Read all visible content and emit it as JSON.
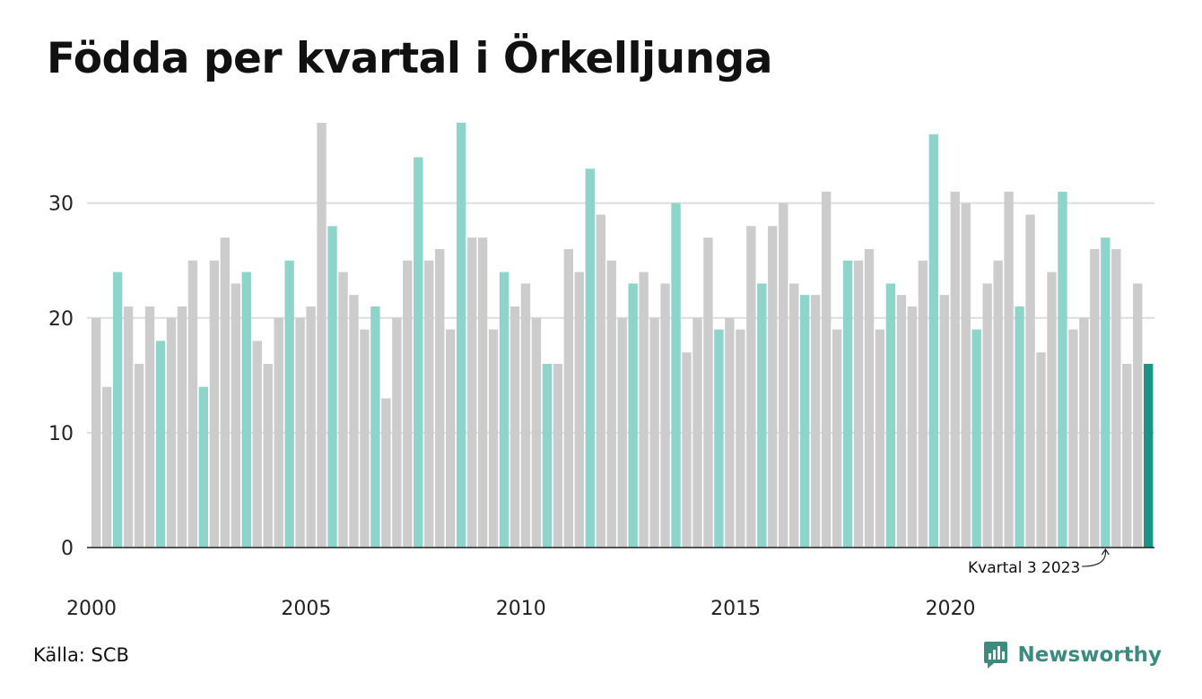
{
  "title": "Födda per kvartal i Örkelljunga",
  "source": "Källa: SCB",
  "brand": "Newsworthy",
  "colors": {
    "bar_default": "#cccccc",
    "bar_q3": "#8dd5cb",
    "bar_latest": "#1a9485",
    "grid": "#dddddd",
    "axis": "#222222",
    "brand": "#3b8c7f"
  },
  "chart_data": {
    "type": "bar",
    "title": "Födda per kvartal i Örkelljunga",
    "ylim": [
      0,
      37
    ],
    "yticks": [
      0,
      10,
      20,
      30
    ],
    "xtick_labels": [
      "2000",
      "2005",
      "2010",
      "2015",
      "2020"
    ],
    "grid": true,
    "annotation": {
      "text": "Kvartal 3 2023",
      "target_quarter": "2023 Q3"
    },
    "series": [
      {
        "categories": [
          "2000 Q1",
          "2000 Q2",
          "2000 Q3",
          "2000 Q4",
          "2001 Q1",
          "2001 Q2",
          "2001 Q3",
          "2001 Q4",
          "2002 Q1",
          "2002 Q2",
          "2002 Q3",
          "2002 Q4",
          "2003 Q1",
          "2003 Q2",
          "2003 Q3",
          "2003 Q4",
          "2004 Q1",
          "2004 Q2",
          "2004 Q3",
          "2004 Q4",
          "2005 Q1",
          "2005 Q2",
          "2005 Q3",
          "2005 Q4",
          "2006 Q1",
          "2006 Q2",
          "2006 Q3",
          "2006 Q4",
          "2007 Q1",
          "2007 Q2",
          "2007 Q3",
          "2007 Q4",
          "2008 Q1",
          "2008 Q2",
          "2008 Q3",
          "2008 Q4",
          "2009 Q1",
          "2009 Q2",
          "2009 Q3",
          "2009 Q4",
          "2010 Q1",
          "2010 Q2",
          "2010 Q3",
          "2010 Q4",
          "2011 Q1",
          "2011 Q2",
          "2011 Q3",
          "2011 Q4",
          "2012 Q1",
          "2012 Q2",
          "2012 Q3",
          "2012 Q4",
          "2013 Q1",
          "2013 Q2",
          "2013 Q3",
          "2013 Q4",
          "2014 Q1",
          "2014 Q2",
          "2014 Q3",
          "2014 Q4",
          "2015 Q1",
          "2015 Q2",
          "2015 Q3",
          "2015 Q4",
          "2016 Q1",
          "2016 Q2",
          "2016 Q3",
          "2016 Q4",
          "2017 Q1",
          "2017 Q2",
          "2017 Q3",
          "2017 Q4",
          "2018 Q1",
          "2018 Q2",
          "2018 Q3",
          "2018 Q4",
          "2019 Q1",
          "2019 Q2",
          "2019 Q3",
          "2019 Q4",
          "2020 Q1",
          "2020 Q2",
          "2020 Q3",
          "2020 Q4",
          "2021 Q1",
          "2021 Q2",
          "2021 Q3",
          "2021 Q4",
          "2022 Q1",
          "2022 Q2",
          "2022 Q3",
          "2022 Q4",
          "2023 Q1",
          "2023 Q2",
          "2023 Q3",
          "2023 Q4",
          "2024 Q1",
          "2024 Q2",
          "2024 Q3"
        ],
        "values": [
          20,
          14,
          24,
          21,
          16,
          21,
          18,
          20,
          21,
          25,
          14,
          25,
          27,
          23,
          24,
          18,
          16,
          20,
          25,
          20,
          21,
          37,
          28,
          24,
          22,
          19,
          21,
          13,
          20,
          25,
          34,
          25,
          26,
          19,
          37,
          27,
          27,
          19,
          24,
          21,
          23,
          20,
          16,
          16,
          26,
          24,
          33,
          29,
          25,
          20,
          23,
          24,
          20,
          23,
          30,
          17,
          20,
          27,
          19,
          20,
          19,
          28,
          23,
          28,
          30,
          23,
          22,
          22,
          31,
          19,
          25,
          25,
          26,
          19,
          23,
          22,
          21,
          25,
          36,
          22,
          31,
          30,
          19,
          23,
          25,
          31,
          21,
          29,
          17,
          24,
          31,
          19,
          20,
          26,
          27,
          26,
          16,
          23,
          16
        ]
      }
    ]
  }
}
